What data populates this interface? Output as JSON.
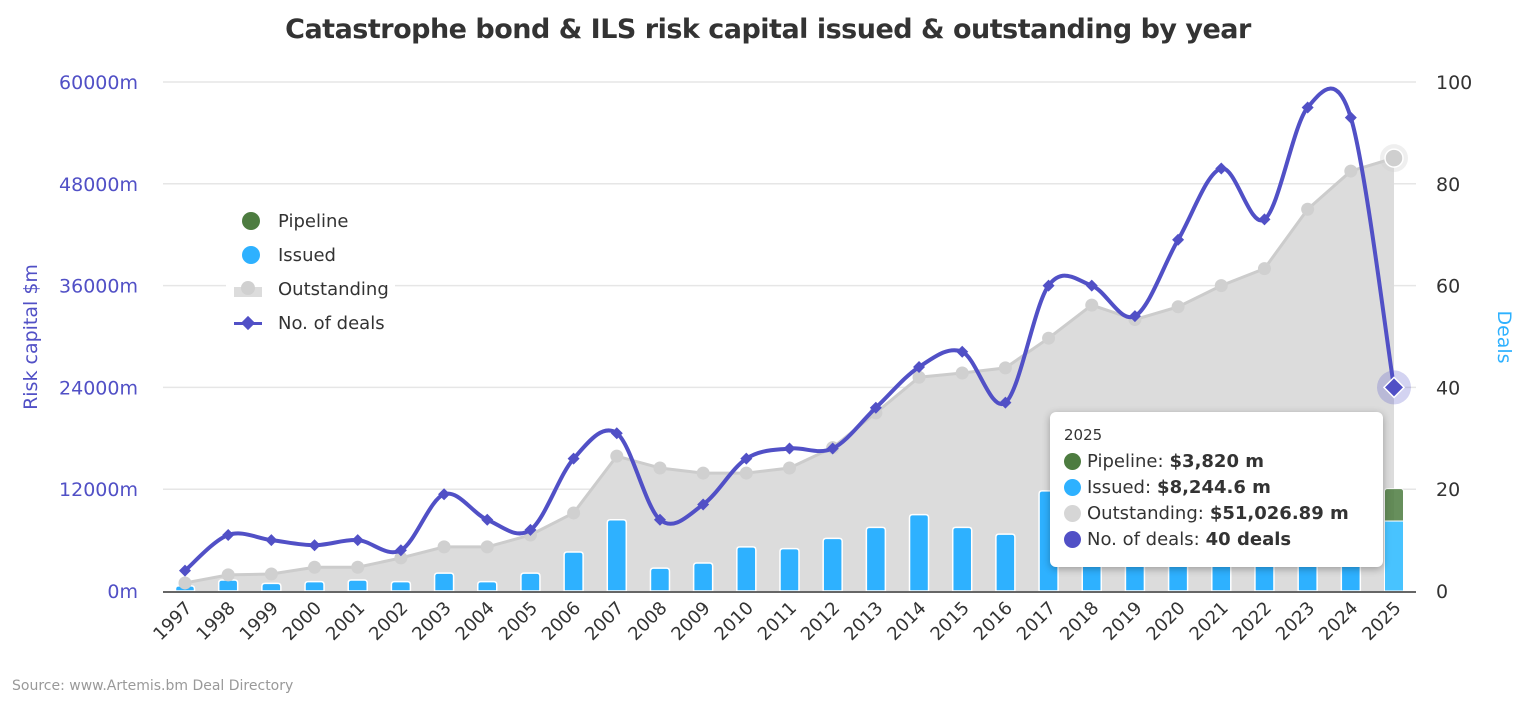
{
  "title": "Catastrophe bond & ILS risk capital issued & outstanding by year",
  "source": "Source: www.Artemis.bm Deal Directory",
  "colors": {
    "pipeline": "#4d7c40",
    "issued": "#2eb1ff",
    "outstanding": "#dcdcdc",
    "outstanding_line": "#cccccc",
    "deals": "#5150c6",
    "left_axis": "#5150c6",
    "right_axis": "#2eb1ff"
  },
  "legend": [
    {
      "name": "Pipeline",
      "symbol": "circle"
    },
    {
      "name": "Issued",
      "symbol": "circle"
    },
    {
      "name": "Outstanding",
      "symbol": "area"
    },
    {
      "name": "No. of deals",
      "symbol": "line-diamond"
    }
  ],
  "tooltip": {
    "header": "2025",
    "rows": [
      {
        "label": "Pipeline:",
        "value": "$3,820 m",
        "color": "#4d7c40"
      },
      {
        "label": "Issued:",
        "value": "$8,244.6 m",
        "color": "#2eb1ff"
      },
      {
        "label": "Outstanding:",
        "value": "$51,026.89 m",
        "color": "#d6d6d6"
      },
      {
        "label": "No. of deals:",
        "value": "40 deals",
        "color": "#5150c6"
      }
    ]
  },
  "chart_data": {
    "type": "bar+area+line",
    "title": "Catastrophe bond & ILS risk capital issued & outstanding by year",
    "ylabel": "Risk capital $m",
    "y2label": "Deals",
    "ylim": [
      0,
      60000
    ],
    "y2lim": [
      0,
      100
    ],
    "yticks": [
      "0m",
      "12000m",
      "24000m",
      "36000m",
      "48000m",
      "60000m"
    ],
    "y2ticks": [
      "0",
      "20",
      "40",
      "60",
      "80",
      "100"
    ],
    "grid": true,
    "legend_placement": "left-inside",
    "categories": [
      "1997",
      "1998",
      "1999",
      "2000",
      "2001",
      "2002",
      "2003",
      "2004",
      "2005",
      "2006",
      "2007",
      "2008",
      "2009",
      "2010",
      "2011",
      "2012",
      "2013",
      "2014",
      "2015",
      "2016",
      "2017",
      "2018",
      "2019",
      "2020",
      "2021",
      "2022",
      "2023",
      "2024",
      "2025"
    ],
    "series": [
      {
        "name": "Pipeline",
        "type": "stacked-bar",
        "axis": "left",
        "values": [
          0,
          0,
          0,
          0,
          0,
          0,
          0,
          0,
          0,
          0,
          0,
          0,
          0,
          0,
          0,
          0,
          0,
          0,
          0,
          0,
          0,
          0,
          0,
          0,
          0,
          0,
          0,
          0,
          3820
        ]
      },
      {
        "name": "Issued",
        "type": "stacked-bar",
        "axis": "left",
        "values": [
          600,
          1300,
          900,
          1100,
          1300,
          1100,
          2100,
          1100,
          2100,
          4600,
          8400,
          2700,
          3300,
          5200,
          5000,
          6200,
          7500,
          9000,
          7500,
          6700,
          11800,
          13900,
          11100,
          16400,
          16900,
          12800,
          16400,
          17700,
          8244.6
        ]
      },
      {
        "name": "Outstanding",
        "type": "area",
        "axis": "left",
        "values": [
          950,
          1900,
          2000,
          2800,
          2800,
          3900,
          5200,
          5200,
          6600,
          9200,
          15900,
          14500,
          13900,
          13900,
          14500,
          16900,
          21000,
          25200,
          25700,
          26300,
          29800,
          33700,
          32000,
          33500,
          36000,
          38000,
          45000,
          49500,
          51026.89
        ]
      },
      {
        "name": "No. of deals",
        "type": "spline",
        "axis": "right",
        "values": [
          4,
          11,
          10,
          9,
          10,
          8,
          19,
          14,
          12,
          26,
          31,
          14,
          17,
          26,
          28,
          28,
          36,
          44,
          47,
          37,
          60,
          60,
          54,
          69,
          83,
          73,
          95,
          93,
          40
        ]
      }
    ],
    "highlighted_category": "2025"
  }
}
